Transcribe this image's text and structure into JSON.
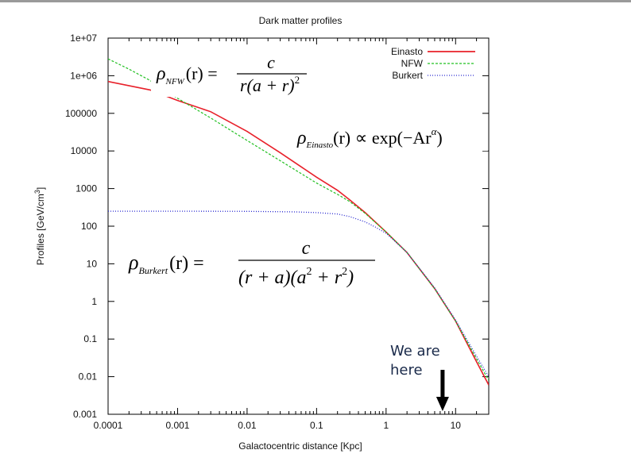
{
  "chart_data": {
    "type": "line",
    "title": "Dark matter profiles",
    "xlabel": "Galactocentric distance [Kpc]",
    "ylabel": "Profiles [GeV/cm",
    "ylabel_sup": "3",
    "ylabel_close": "]",
    "x_scale": "log",
    "y_scale": "log",
    "xlim": [
      0.0001,
      30
    ],
    "ylim": [
      0.001,
      10000000
    ],
    "x_ticks": [
      0.0001,
      0.001,
      0.01,
      0.1,
      1,
      10
    ],
    "x_tick_labels": [
      "0.0001",
      "0.001",
      "0.01",
      "0.1",
      "1",
      "10"
    ],
    "y_ticks": [
      0.001,
      0.01,
      0.1,
      1,
      10,
      100,
      1000,
      10000,
      100000,
      1000000,
      10000000
    ],
    "y_tick_labels": [
      "0.001",
      "0.01",
      "0.1",
      "1",
      "10",
      "100",
      "1000",
      "10000",
      "100000",
      "1e+06",
      "1e+07"
    ],
    "grid": false,
    "legend_position": "top-right",
    "series": [
      {
        "name": "Einasto",
        "color": "#e8202a",
        "style": "solid",
        "x": [
          0.0001,
          0.0004,
          0.001,
          0.003,
          0.01,
          0.03,
          0.1,
          0.2,
          0.3,
          0.5,
          1,
          2,
          5,
          10,
          20,
          30
        ],
        "y": [
          700000,
          420000,
          220000,
          110000,
          33000,
          9000,
          2000,
          900,
          500,
          230,
          70,
          20,
          2.2,
          0.3,
          0.025,
          0.006
        ]
      },
      {
        "name": "NFW",
        "color": "#22c022",
        "style": "dashed",
        "x": [
          0.0001,
          0.0002,
          0.0004,
          0.001,
          0.003,
          0.01,
          0.03,
          0.1,
          0.2,
          0.3,
          0.5,
          1,
          2,
          5,
          10,
          20,
          30
        ],
        "y": [
          2800000,
          1500000,
          750000,
          250000,
          75000,
          19000,
          5500,
          1400,
          700,
          450,
          220,
          70,
          20,
          2.2,
          0.3,
          0.03,
          0.008
        ]
      },
      {
        "name": "Burkert",
        "color": "#2a2ad0",
        "style": "dotted",
        "x": [
          0.0001,
          0.001,
          0.01,
          0.05,
          0.1,
          0.2,
          0.3,
          0.5,
          0.7,
          1,
          2,
          5,
          10,
          20,
          30
        ],
        "y": [
          250,
          250,
          248,
          240,
          230,
          210,
          180,
          130,
          95,
          65,
          20,
          2.3,
          0.32,
          0.035,
          0.01
        ]
      }
    ],
    "formulas": {
      "nfw": {
        "rho": "ρ",
        "sub": "NFW",
        "args": "(r) =",
        "num": "c",
        "den": "r(a + r)",
        "den_sup": "2"
      },
      "einasto": {
        "rho": "ρ",
        "sub": "Einasto",
        "text": "(r) ∝ exp(−Ar",
        "sup": "α",
        "close": ")"
      },
      "burkert": {
        "rho": "ρ",
        "sub": "Burkert",
        "args": "(r) =",
        "num": "c",
        "den_a": "(r + a)(a",
        "den_sup1": "2",
        "den_b": " + r",
        "den_sup2": "2",
        "den_c": ")"
      }
    },
    "annotation": {
      "line1": "We are",
      "line2": "here",
      "x": 6.5
    }
  }
}
